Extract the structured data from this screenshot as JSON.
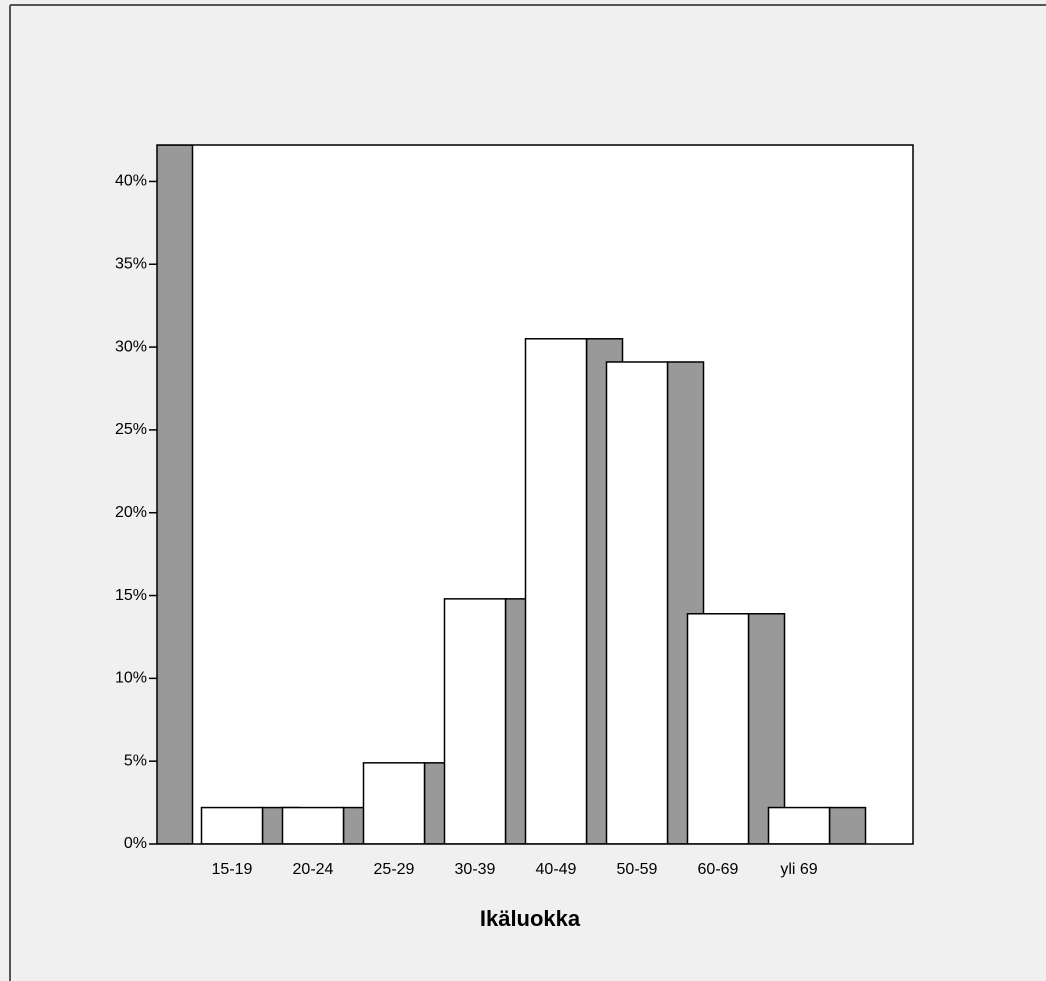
{
  "chart_data": {
    "type": "bar",
    "x_label": "Ikäluokka",
    "categories": [
      null,
      "15-19",
      "20-24",
      "25-29",
      "30-39",
      "40-49",
      "50-59",
      "60-69",
      "yli 69"
    ],
    "values": [
      42.2,
      2.2,
      2.2,
      4.9,
      14.8,
      30.5,
      29.1,
      13.9,
      2.2
    ],
    "color": "#ffffff",
    "shadow_color": "#999999",
    "ylim": [
      0,
      42.2
    ],
    "yticks": [
      {
        "value": 0,
        "label": "0%"
      },
      {
        "value": 5,
        "label": "5%"
      },
      {
        "value": 10,
        "label": "10%"
      },
      {
        "value": 15,
        "label": "15%"
      },
      {
        "value": 20,
        "label": "20%"
      },
      {
        "value": 25,
        "label": "25%"
      },
      {
        "value": 30,
        "label": "30%"
      },
      {
        "value": 35,
        "label": "35%"
      },
      {
        "value": 40,
        "label": "40%"
      }
    ],
    "grid": false
  }
}
